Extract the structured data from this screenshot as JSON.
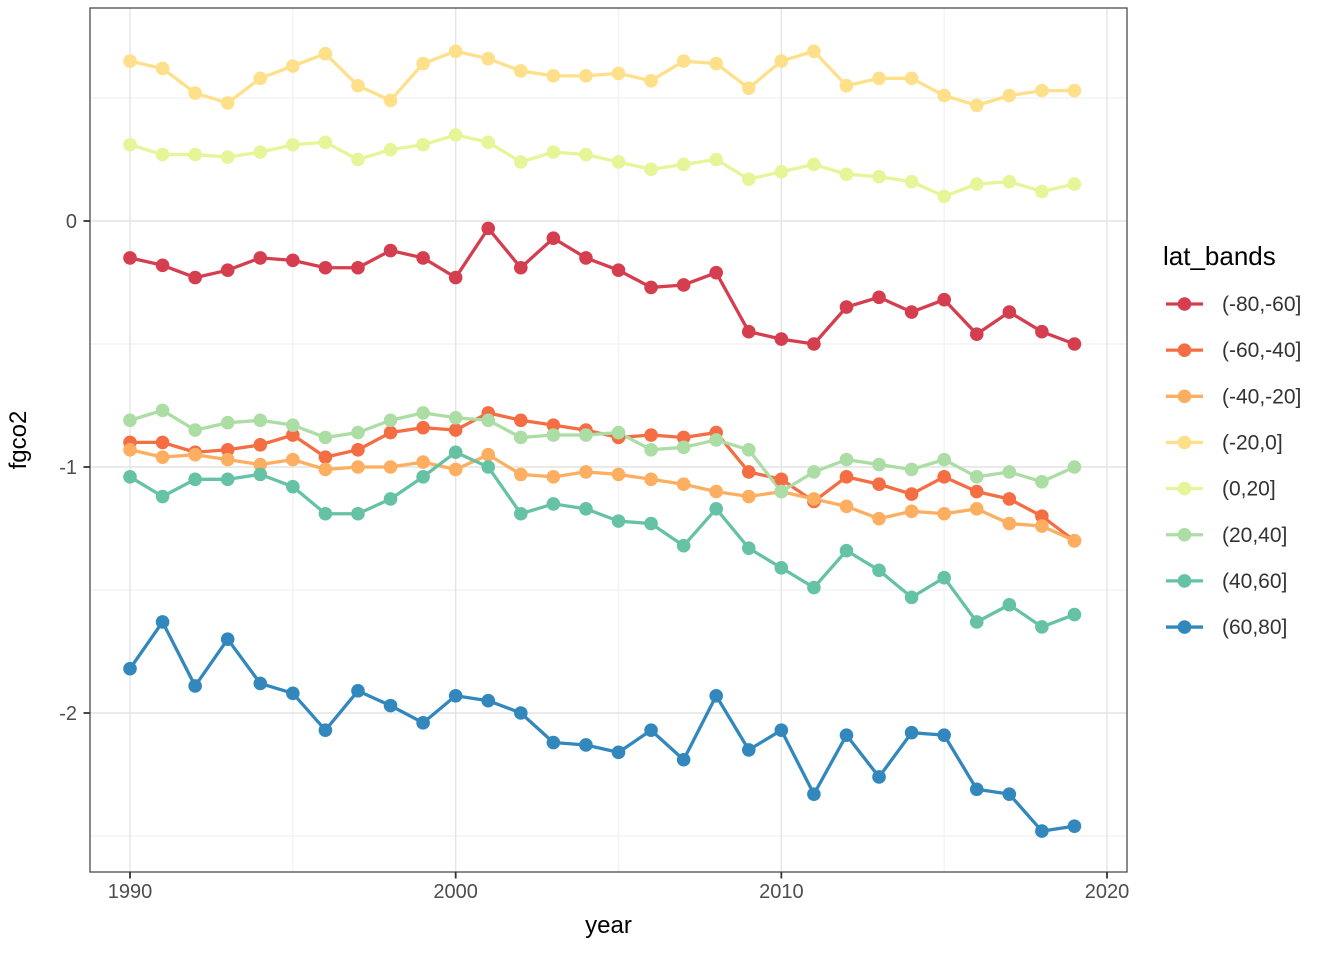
{
  "colors": {
    "background": "#FFFFFF",
    "panel_border": "#4A4A4A",
    "grid_major": "#E4E4E4",
    "grid_minor": "#F3F3F3",
    "tick_mark": "#333333",
    "tick_label": "#4D4D4D",
    "axis_title": "#000000",
    "legend_title": "#000000",
    "legend_text": "#333333"
  },
  "chart_data": {
    "type": "line",
    "title": "",
    "xlabel": "year",
    "ylabel": "fgco2",
    "legend_title": "lat_bands",
    "legend_position": "right",
    "grid": true,
    "xlim": [
      1988.8,
      2020.6
    ],
    "ylim": [
      -2.63,
      0.87
    ],
    "x_ticks": [
      1990,
      2000,
      2010,
      2020
    ],
    "x_minor_ticks": [
      1995,
      2005,
      2015
    ],
    "y_ticks": [
      0,
      -1,
      -2
    ],
    "y_tick_labels": [
      "0",
      "-1",
      "-2"
    ],
    "y_minor_ticks": [
      0.5,
      -0.5,
      -1.5,
      -2.5
    ],
    "x": [
      1990,
      1991,
      1992,
      1993,
      1994,
      1995,
      1996,
      1997,
      1998,
      1999,
      2000,
      2001,
      2002,
      2003,
      2004,
      2005,
      2006,
      2007,
      2008,
      2009,
      2010,
      2011,
      2012,
      2013,
      2014,
      2015,
      2016,
      2017,
      2018,
      2019
    ],
    "series": [
      {
        "name": "(-80,-60]",
        "color": "#D53E4F",
        "values": [
          -0.15,
          -0.18,
          -0.23,
          -0.2,
          -0.15,
          -0.16,
          -0.19,
          -0.19,
          -0.12,
          -0.15,
          -0.23,
          -0.03,
          -0.19,
          -0.07,
          -0.15,
          -0.2,
          -0.27,
          -0.26,
          -0.21,
          -0.45,
          -0.48,
          -0.5,
          -0.35,
          -0.31,
          -0.37,
          -0.32,
          -0.46,
          -0.37,
          -0.45,
          -0.5
        ]
      },
      {
        "name": "(-60,-40]",
        "color": "#F46D43",
        "values": [
          -0.9,
          -0.9,
          -0.94,
          -0.93,
          -0.91,
          -0.87,
          -0.96,
          -0.93,
          -0.86,
          -0.84,
          -0.85,
          -0.78,
          -0.81,
          -0.83,
          -0.85,
          -0.88,
          -0.87,
          -0.88,
          -0.86,
          -1.02,
          -1.05,
          -1.14,
          -1.04,
          -1.07,
          -1.11,
          -1.04,
          -1.1,
          -1.13,
          -1.2,
          -1.3
        ]
      },
      {
        "name": "(-40,-20]",
        "color": "#FDAE61",
        "values": [
          -0.93,
          -0.96,
          -0.95,
          -0.97,
          -0.99,
          -0.97,
          -1.01,
          -1.0,
          -1.0,
          -0.98,
          -1.01,
          -0.95,
          -1.03,
          -1.04,
          -1.02,
          -1.03,
          -1.05,
          -1.07,
          -1.1,
          -1.12,
          -1.1,
          -1.13,
          -1.16,
          -1.21,
          -1.18,
          -1.19,
          -1.17,
          -1.23,
          -1.24,
          -1.3
        ]
      },
      {
        "name": "(-20,0]",
        "color": "#FEE08B",
        "values": [
          0.65,
          0.62,
          0.52,
          0.48,
          0.58,
          0.63,
          0.68,
          0.55,
          0.49,
          0.64,
          0.69,
          0.66,
          0.61,
          0.59,
          0.59,
          0.6,
          0.57,
          0.65,
          0.64,
          0.54,
          0.65,
          0.69,
          0.55,
          0.58,
          0.58,
          0.51,
          0.47,
          0.51,
          0.53,
          0.53
        ]
      },
      {
        "name": "(0,20]",
        "color": "#E6F598",
        "values": [
          0.31,
          0.27,
          0.27,
          0.26,
          0.28,
          0.31,
          0.32,
          0.25,
          0.29,
          0.31,
          0.35,
          0.32,
          0.24,
          0.28,
          0.27,
          0.24,
          0.21,
          0.23,
          0.25,
          0.17,
          0.2,
          0.23,
          0.19,
          0.18,
          0.16,
          0.1,
          0.15,
          0.16,
          0.12,
          0.15
        ]
      },
      {
        "name": "(20,40]",
        "color": "#ABDDA4",
        "values": [
          -0.81,
          -0.77,
          -0.85,
          -0.82,
          -0.81,
          -0.83,
          -0.88,
          -0.86,
          -0.81,
          -0.78,
          -0.8,
          -0.81,
          -0.88,
          -0.87,
          -0.87,
          -0.86,
          -0.93,
          -0.92,
          -0.89,
          -0.93,
          -1.1,
          -1.02,
          -0.97,
          -0.99,
          -1.01,
          -0.97,
          -1.04,
          -1.02,
          -1.06,
          -1.0
        ]
      },
      {
        "name": "(40,60]",
        "color": "#66C2A5",
        "values": [
          -1.04,
          -1.12,
          -1.05,
          -1.05,
          -1.03,
          -1.08,
          -1.19,
          -1.19,
          -1.13,
          -1.04,
          -0.94,
          -1.0,
          -1.19,
          -1.15,
          -1.17,
          -1.22,
          -1.23,
          -1.32,
          -1.17,
          -1.33,
          -1.41,
          -1.49,
          -1.34,
          -1.42,
          -1.53,
          -1.45,
          -1.63,
          -1.56,
          -1.65,
          -1.6
        ]
      },
      {
        "name": "(60,80]",
        "color": "#3288BD",
        "values": [
          -1.82,
          -1.63,
          -1.89,
          -1.7,
          -1.88,
          -1.92,
          -2.07,
          -1.91,
          -1.97,
          -2.04,
          -1.93,
          -1.95,
          -2.0,
          -2.12,
          -2.13,
          -2.16,
          -2.07,
          -2.19,
          -1.93,
          -2.15,
          -2.07,
          -2.33,
          -2.09,
          -2.26,
          -2.08,
          -2.09,
          -2.31,
          -2.33,
          -2.48,
          -2.46
        ]
      }
    ]
  }
}
